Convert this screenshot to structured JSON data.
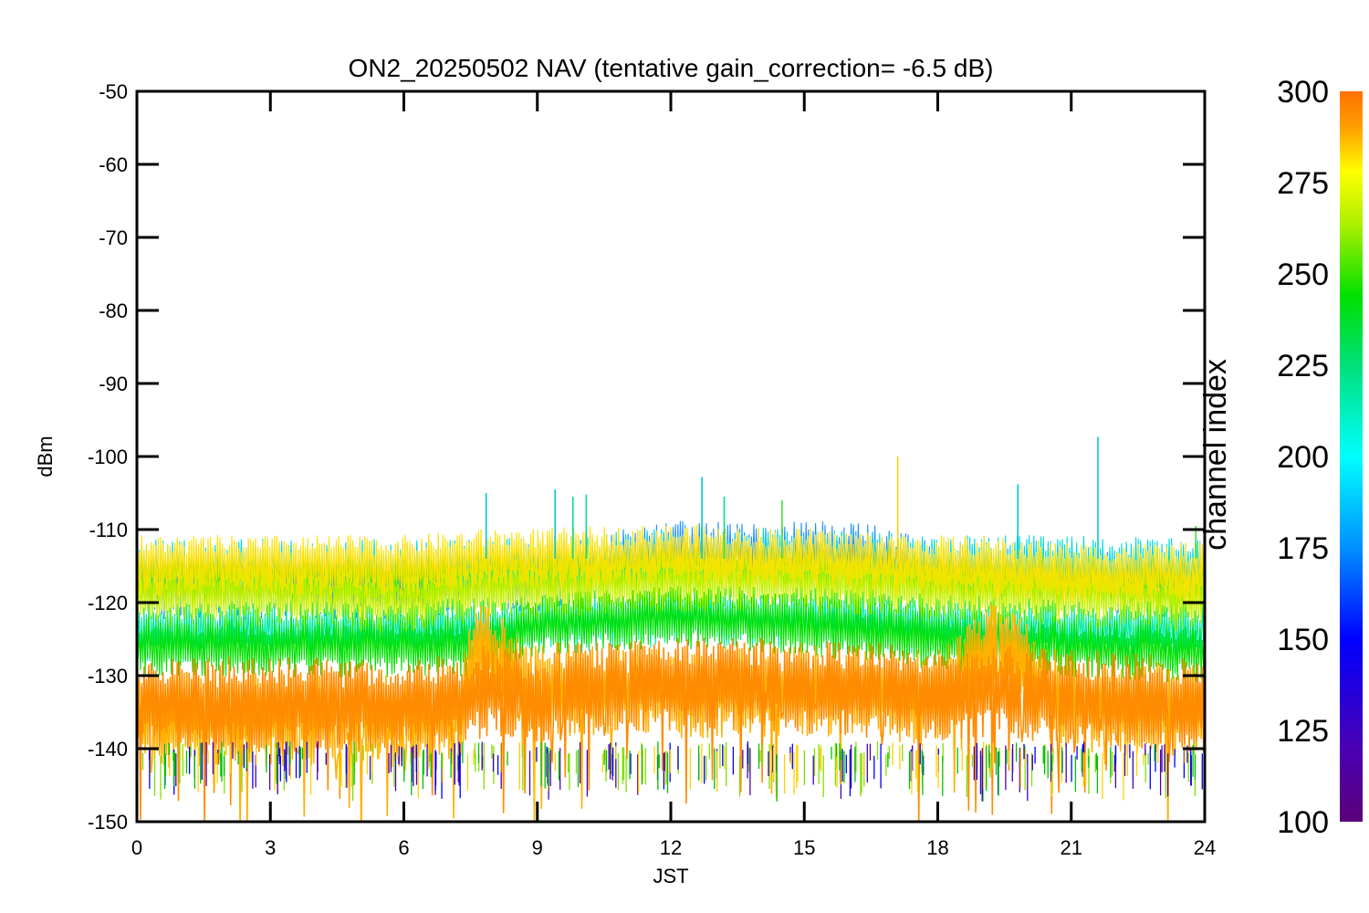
{
  "chart_data": {
    "type": "line",
    "title": "ON2_20250502 NAV (tentative gain_correction= -6.5 dB)",
    "xlabel": "JST",
    "ylabel": "dBm",
    "xlim": [
      0,
      24
    ],
    "ylim": [
      -150,
      -50
    ],
    "x_ticks": [
      "0",
      "3",
      "6",
      "9",
      "12",
      "15",
      "18",
      "21",
      "24"
    ],
    "y_ticks": [
      "-50",
      "-60",
      "-70",
      "-80",
      "-90",
      "-100",
      "-110",
      "-120",
      "-130",
      "-140",
      "-150"
    ],
    "grid": false,
    "colorbar": {
      "label": "channel index",
      "range": [
        100,
        300
      ],
      "ticks": [
        "300",
        "275",
        "250",
        "225",
        "200",
        "175",
        "150",
        "125",
        "100"
      ]
    },
    "series": [
      {
        "channel": 300,
        "color": "#ff8c00",
        "x": [
          0,
          3,
          6,
          7.3,
          7.9,
          9,
          10.5,
          12,
          13.5,
          15,
          16.5,
          18,
          19.5,
          21,
          22.5,
          24
        ],
        "y": [
          -134,
          -134,
          -134,
          -133.5,
          -132,
          -133,
          -131.5,
          -131,
          -131,
          -131.5,
          -132,
          -132.5,
          -132,
          -133,
          -133.5,
          -134
        ]
      },
      {
        "channel": 290,
        "color": "#ffb000",
        "x": [
          0,
          3,
          6,
          7.3,
          7.6,
          8,
          9,
          12,
          15,
          18,
          19.3,
          19.7,
          21,
          24
        ],
        "y": [
          -136,
          -136,
          -136,
          -135,
          -126,
          -127,
          -132,
          -132,
          -132,
          -133,
          -126,
          -128,
          -134,
          -135
        ]
      },
      {
        "channel": 275,
        "color": "#ffe000",
        "x": [
          0,
          3,
          6,
          8,
          9,
          12,
          15,
          18,
          19,
          21,
          24
        ],
        "y": [
          -115,
          -115,
          -115,
          -114,
          -114,
          -113.5,
          -114,
          -115,
          -115,
          -116,
          -116
        ]
      },
      {
        "channel": 265,
        "color": "#c8f000",
        "x": [
          0,
          3,
          6,
          8,
          9,
          12,
          15,
          18,
          19,
          21,
          24
        ],
        "y": [
          -119,
          -119,
          -120,
          -118,
          -118,
          -117,
          -117,
          -118,
          -119,
          -119,
          -120
        ]
      },
      {
        "channel": 250,
        "color": "#7fe800",
        "x": [
          0,
          3,
          6,
          9,
          12,
          15,
          18,
          21,
          24
        ],
        "y": [
          -117,
          -117,
          -117,
          -117,
          -116,
          -116,
          -117,
          -117,
          -118
        ]
      },
      {
        "channel": 225,
        "color": "#00e000",
        "x": [
          0,
          3,
          6,
          7.5,
          9,
          12,
          15,
          18,
          21,
          24
        ],
        "y": [
          -126,
          -126,
          -126,
          -126,
          -123,
          -122,
          -123,
          -125,
          -126,
          -127
        ]
      },
      {
        "channel": 200,
        "color": "#00e8a0",
        "x": [
          0,
          3,
          6,
          9,
          12,
          15,
          18,
          21,
          24
        ],
        "y": [
          -124,
          -124,
          -124,
          -123,
          -122,
          -122,
          -123,
          -124,
          -124
        ]
      },
      {
        "channel": 175,
        "color": "#00d8e0",
        "x": [
          0,
          3,
          6,
          9,
          12,
          15,
          18,
          21,
          24
        ],
        "y": [
          -115.5,
          -115.5,
          -115.5,
          -115,
          -114,
          -114,
          -115,
          -115,
          -115.5
        ]
      },
      {
        "channel": 160,
        "color": "#1f8fff",
        "x": [
          0,
          6,
          9,
          11,
          12,
          13,
          14,
          15,
          16,
          17,
          18,
          21,
          24
        ],
        "y": [
          -118,
          -118,
          -117,
          -114,
          -113,
          -113,
          -113.5,
          -113,
          -113,
          -114,
          -116,
          -117,
          -118
        ]
      }
    ],
    "spikes": [
      {
        "x": 7.85,
        "y": -105,
        "color": "#00c8d8"
      },
      {
        "x": 9.4,
        "y": -104.5,
        "color": "#00c8d8"
      },
      {
        "x": 9.8,
        "y": -105.5,
        "color": "#00e090"
      },
      {
        "x": 10.1,
        "y": -105.2,
        "color": "#00e090"
      },
      {
        "x": 12.7,
        "y": -102.8,
        "color": "#00c8d8"
      },
      {
        "x": 13.2,
        "y": -105.5,
        "color": "#00e090"
      },
      {
        "x": 14.5,
        "y": -106,
        "color": "#40e040"
      },
      {
        "x": 17.1,
        "y": -100,
        "color": "#ffd000"
      },
      {
        "x": 19.8,
        "y": -103.8,
        "color": "#00c8d8"
      },
      {
        "x": 21.6,
        "y": -97.3,
        "color": "#00c8d8"
      },
      {
        "x": 23.8,
        "y": -109.5,
        "color": "#40e040"
      }
    ]
  }
}
